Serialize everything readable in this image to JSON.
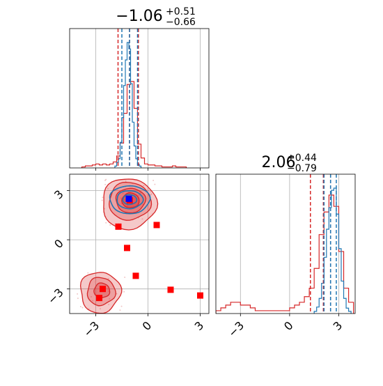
{
  "colors": {
    "posterior_a": "#d62728",
    "posterior_b": "#1f77b4",
    "marker": "#ff0000",
    "truth_marker": "#0000ff",
    "grid": "#b0b0b0",
    "axes": "#000000"
  },
  "chart_data": {
    "type": "corner",
    "grid": true,
    "xlim": [
      -4.5,
      3.5
    ],
    "ylim": [
      -4.5,
      4.0
    ],
    "ticks": [
      -3,
      0,
      3
    ],
    "tick_labels": [
      "−3",
      "0",
      "3"
    ],
    "parameters": [
      {
        "title": {
          "main": "−1.06",
          "sup": "+0.51",
          "sub": "−0.66"
        },
        "series_a_quantiles": [
          -1.72,
          -1.06,
          -0.55
        ],
        "series_b_quantiles": [
          -1.5,
          -1.06,
          -0.6
        ]
      },
      {
        "title": {
          "main": "2.06",
          "sup": "+0.44",
          "sub": "−0.79"
        },
        "series_a_quantiles": [
          1.27,
          2.06,
          2.5
        ],
        "series_b_quantiles": [
          2.1,
          2.5,
          2.85
        ]
      }
    ],
    "marginal_x": {
      "series_a": {
        "edges": [
          -3.8,
          -3.6,
          -3.4,
          -3.2,
          -3.0,
          -2.8,
          -2.6,
          -2.4,
          -2.2,
          -2.0,
          -1.8,
          -1.6,
          -1.4,
          -1.2,
          -1.0,
          -0.8,
          -0.6,
          -0.4,
          -0.2,
          0.0,
          0.2,
          0.4,
          0.6,
          0.8,
          1.0,
          1.2,
          1.4,
          1.6,
          1.8,
          2.0,
          2.2
        ],
        "counts": [
          1,
          2,
          2,
          3,
          4,
          3,
          4,
          3,
          4,
          6,
          12,
          25,
          55,
          84,
          87,
          60,
          24,
          10,
          4,
          3,
          3,
          2,
          2,
          1,
          1,
          1,
          2,
          1,
          1,
          1
        ]
      },
      "series_b": {
        "edges": [
          -1.9,
          -1.8,
          -1.7,
          -1.6,
          -1.5,
          -1.4,
          -1.3,
          -1.2,
          -1.1,
          -1.0,
          -0.9,
          -0.8,
          -0.7,
          -0.6,
          -0.5,
          -0.4
        ],
        "counts": [
          2,
          6,
          10,
          28,
          55,
          90,
          118,
          137,
          130,
          92,
          50,
          24,
          10,
          4,
          2
        ]
      }
    },
    "marginal_y": {
      "series_a": {
        "edges": [
          -4.5,
          -4.2,
          -3.9,
          -3.6,
          -3.3,
          -3.0,
          -2.7,
          -2.4,
          -2.1,
          -1.8,
          -1.5,
          -1.2,
          -0.9,
          -0.6,
          -0.3,
          0.0,
          0.3,
          0.6,
          0.9,
          1.2,
          1.5,
          1.8,
          2.1,
          2.4,
          2.7,
          3.0,
          3.3,
          3.6,
          3.9
        ],
        "counts": [
          1,
          2,
          3,
          4,
          4,
          3,
          3,
          2,
          1,
          1,
          1,
          1,
          1,
          1,
          1,
          2,
          3,
          4,
          6,
          9,
          16,
          28,
          36,
          42,
          38,
          22,
          9,
          4
        ]
      },
      "series_b": {
        "edges": [
          1.5,
          1.65,
          1.8,
          1.95,
          2.1,
          2.25,
          2.4,
          2.55,
          2.7,
          2.85,
          3.0,
          3.15,
          3.3,
          3.45,
          3.6,
          3.75
        ],
        "counts": [
          2,
          6,
          14,
          28,
          52,
          78,
          98,
          114,
          116,
          92,
          60,
          30,
          14,
          5,
          2
        ]
      }
    },
    "markers": [
      {
        "x": -1.05,
        "y": 2.4
      },
      {
        "x": -1.7,
        "y": 0.8
      },
      {
        "x": 0.5,
        "y": 0.9
      },
      {
        "x": -1.2,
        "y": -0.5
      },
      {
        "x": -0.7,
        "y": -2.2
      },
      {
        "x": -2.6,
        "y": -3.0
      },
      {
        "x": -2.8,
        "y": -3.55
      },
      {
        "x": 1.3,
        "y": -3.05
      },
      {
        "x": 3.0,
        "y": -3.4
      }
    ],
    "truth_marker": {
      "x": -1.1,
      "y": 2.5
    }
  }
}
